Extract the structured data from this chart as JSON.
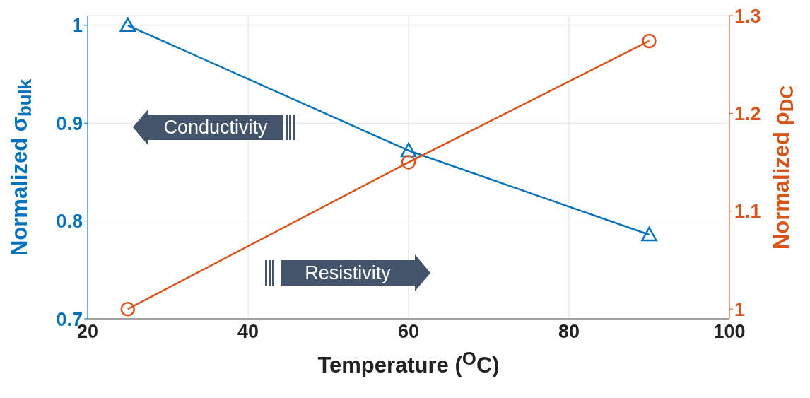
{
  "chart_data": {
    "type": "line",
    "xlabel": "Temperature ($^{O}$C)",
    "ylabel": "Normalized σ$_{bulk}$",
    "y2label": "Normalized ρ$_{DC}$",
    "x": [
      25,
      60,
      90
    ],
    "series": [
      {
        "color": "#0072bd",
        "values": [
          1.0,
          0.872,
          0.786
        ],
        "marker": "triangle"
      },
      {
        "color": "#d95319",
        "values": [
          1.0,
          1.15,
          1.274
        ],
        "marker": "circle",
        "axis": "y2"
      }
    ],
    "xlim": [
      20,
      100
    ],
    "xticks": [
      20,
      40,
      60,
      80,
      100
    ],
    "ylim": [
      0.7,
      1.01
    ],
    "yticks": [
      0.7,
      0.8,
      0.9,
      1
    ],
    "y2lim": [
      0.99,
      1.3
    ],
    "y2ticks": [
      1,
      1.1,
      1.2,
      1.3
    ],
    "grid": true,
    "line_style": "solid",
    "annotations": [
      "Conductivity",
      "Resistivity"
    ]
  }
}
